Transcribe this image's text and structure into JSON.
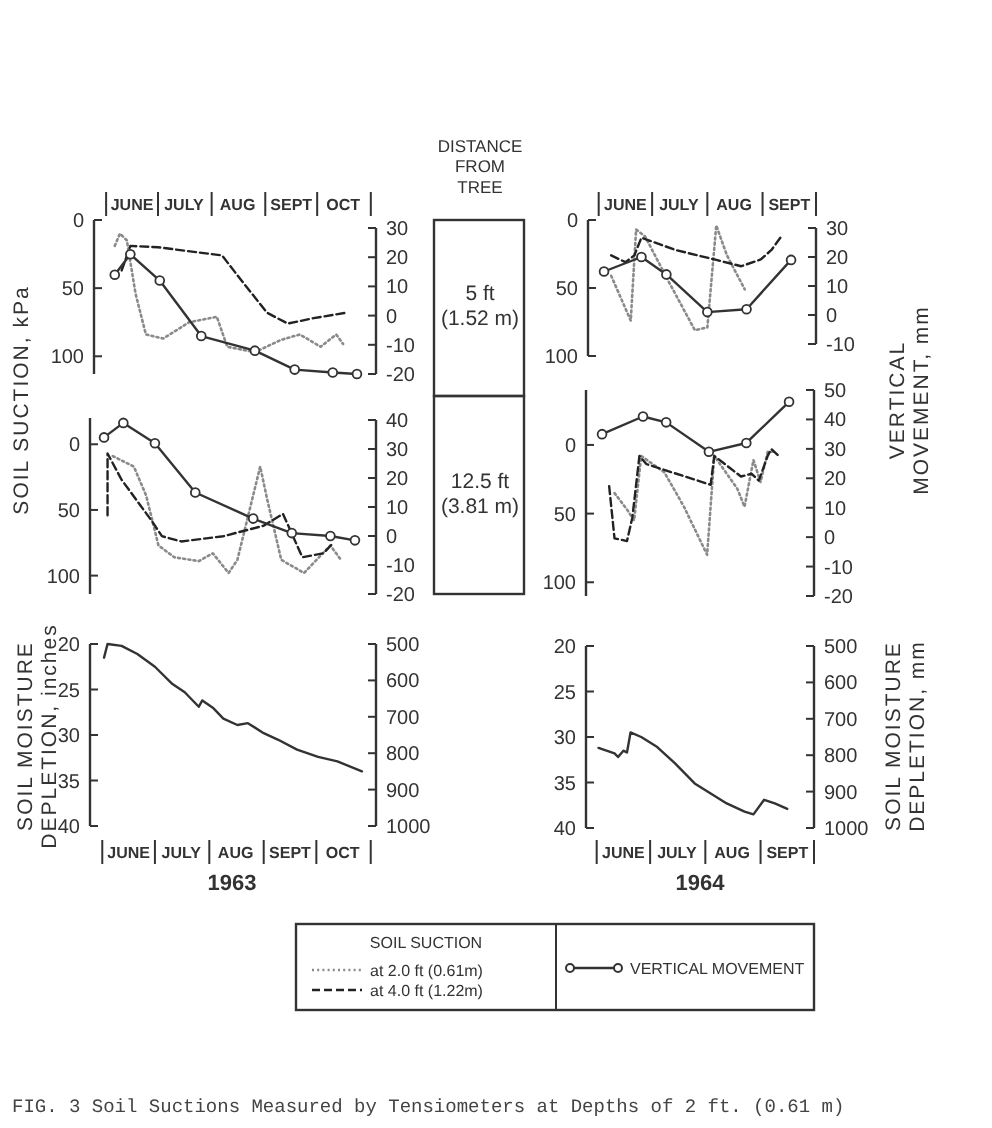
{
  "chart_data": [
    {
      "type": "line",
      "ylabel": "SOIL SUCTION, kPa",
      "legend": "bottom",
      "legend_title": "SOIL SUCTION",
      "annotations": [
        "DISTANCE FROM TREE",
        "5 ft (1.52 m)"
      ],
      "xlim": [
        "1963-05-25",
        "1963-11-04"
      ],
      "x2lim": [
        "1963-05-25",
        "1963-11-04"
      ],
      "x2ticks": [
        {
          "value": "1963-06-01",
          "label": null
        },
        {
          "value": "1963-06-16",
          "label": "JUNE"
        },
        {
          "value": "1963-07-01",
          "label": null
        },
        {
          "value": "1963-07-16",
          "label": "JULY"
        },
        {
          "value": "1963-08-01",
          "label": null
        },
        {
          "value": "1963-08-16",
          "label": "AUG"
        },
        {
          "value": "1963-09-01",
          "label": null
        },
        {
          "value": "1963-09-16",
          "label": "SEPT"
        },
        {
          "value": "1963-10-01",
          "label": null
        },
        {
          "value": "1963-10-16",
          "label": "OCT"
        },
        {
          "value": "1963-11-01",
          "label": null
        }
      ],
      "ylim": [
        113,
        0
      ],
      "yticks": [
        0,
        50,
        100
      ],
      "y2lim": [
        -20,
        30
      ],
      "y2ticks": [
        30,
        20,
        10,
        0,
        -10,
        -20
      ],
      "series": [
        {
          "name": "at 2.0 ft (0.61m)",
          "color": "#8a8a8a",
          "line_style": "dotted",
          "x": [
            "1963-06-06",
            "1963-06-09",
            "1963-06-13",
            "1963-06-18",
            "1963-06-24",
            "1963-07-04",
            "1963-07-19",
            "1963-08-04",
            "1963-08-10",
            "1963-08-26",
            "1963-09-10",
            "1963-09-21",
            "1963-10-03",
            "1963-10-12",
            "1963-10-16"
          ],
          "values": [
            19,
            10,
            15,
            54,
            84,
            87,
            75,
            71,
            93,
            97,
            88,
            84,
            93,
            84,
            91
          ]
        },
        {
          "name": "at 4.0 ft (1.22m)",
          "color": "#222222",
          "line_style": "dashed",
          "x": [
            "1963-06-10",
            "1963-06-15",
            "1963-07-01",
            "1963-08-07",
            "1963-08-18",
            "1963-09-02",
            "1963-09-14",
            "1963-09-29",
            "1963-10-18"
          ],
          "values": [
            37,
            19,
            20,
            26,
            44,
            68,
            76,
            72,
            68
          ]
        },
        {
          "name": "VERTICAL MOVEMENT",
          "color": "#333333",
          "axis": "y2",
          "marker": "circle",
          "x": [
            "1963-06-06",
            "1963-06-15",
            "1963-07-02",
            "1963-07-26",
            "1963-08-26",
            "1963-09-18",
            "1963-10-10",
            "1963-10-24"
          ],
          "values": [
            14,
            21,
            12,
            -7,
            -12,
            -18.5,
            -19.5,
            -20
          ]
        }
      ]
    },
    {
      "type": "line",
      "y2label": "VERTICAL MOVEMENT, mm",
      "xlim": [
        "1964-05-26",
        "1964-10-01"
      ],
      "x2lim": [
        "1964-05-26",
        "1964-10-01"
      ],
      "x2ticks": [
        {
          "value": "1964-06-01",
          "label": null
        },
        {
          "value": "1964-06-16",
          "label": "JUNE"
        },
        {
          "value": "1964-07-01",
          "label": null
        },
        {
          "value": "1964-07-16",
          "label": "JULY"
        },
        {
          "value": "1964-08-01",
          "label": null
        },
        {
          "value": "1964-08-16",
          "label": "AUG"
        },
        {
          "value": "1964-09-01",
          "label": null
        },
        {
          "value": "1964-09-16",
          "label": "SEPT"
        },
        {
          "value": "1964-10-01",
          "label": null
        }
      ],
      "ylim": [
        100,
        0
      ],
      "yticks": [
        0,
        50,
        100
      ],
      "y2lim": [
        -10,
        30
      ],
      "y2ticks": [
        30,
        20,
        10,
        0,
        -10
      ],
      "series": [
        {
          "color": "#8a8a8a",
          "line_style": "dotted",
          "x": [
            "1964-06-08",
            "1964-06-19",
            "1964-06-22",
            "1964-06-27",
            "1964-07-11",
            "1964-07-25",
            "1964-08-01",
            "1964-08-06",
            "1964-08-12",
            "1964-08-22"
          ],
          "values": [
            41,
            74,
            7,
            12,
            47,
            81,
            79,
            4,
            26,
            51
          ]
        },
        {
          "color": "#222222",
          "line_style": "dashed",
          "x": [
            "1964-06-08",
            "1964-06-16",
            "1964-06-21",
            "1964-06-25",
            "1964-07-14",
            "1964-08-05",
            "1964-08-20",
            "1964-08-31",
            "1964-09-06",
            "1964-09-11"
          ],
          "values": [
            26,
            31,
            26,
            13,
            22,
            29,
            34,
            29,
            22,
            13
          ]
        },
        {
          "color": "#333333",
          "axis": "y2",
          "marker": "circle",
          "x": [
            "1964-06-04",
            "1964-06-25",
            "1964-07-09",
            "1964-08-01",
            "1964-08-23",
            "1964-09-17"
          ],
          "values": [
            15,
            20,
            14,
            1,
            2,
            19
          ]
        }
      ]
    },
    {
      "type": "line",
      "annotations": [
        "12.5 ft (3.81 m)"
      ],
      "xlim": [
        "1963-05-25",
        "1963-11-04"
      ],
      "ylim": [
        114,
        -20
      ],
      "yticks": [
        0,
        50,
        100
      ],
      "y2lim": [
        -20,
        40
      ],
      "y2ticks": [
        40,
        30,
        20,
        10,
        0,
        -10,
        -20
      ],
      "series": [
        {
          "color": "#8a8a8a",
          "line_style": "dotted",
          "x": [
            "1963-06-07",
            "1963-06-19",
            "1963-06-26",
            "1963-07-03",
            "1963-07-12",
            "1963-07-26",
            "1963-08-03",
            "1963-08-12",
            "1963-08-17",
            "1963-08-30",
            "1963-09-03",
            "1963-09-11",
            "1963-09-24",
            "1963-10-09",
            "1963-10-15"
          ],
          "values": [
            9,
            17,
            39,
            77,
            86,
            89,
            83,
            98,
            88,
            17,
            42,
            88,
            98,
            77,
            88
          ]
        },
        {
          "color": "#222222",
          "line_style": "dashed",
          "x": [
            "1963-06-04",
            "1963-06-04",
            "1963-06-12",
            "1963-06-29",
            "1963-07-05",
            "1963-07-16",
            "1963-08-09",
            "1963-09-01",
            "1963-09-12",
            "1963-09-17",
            "1963-09-23",
            "1963-10-05",
            "1963-10-10"
          ],
          "values": [
            54,
            7,
            27,
            58,
            70,
            74,
            70,
            62,
            53,
            68,
            86,
            83,
            76
          ]
        },
        {
          "color": "#333333",
          "axis": "y2",
          "marker": "circle",
          "x": [
            "1963-06-02",
            "1963-06-13",
            "1963-07-01",
            "1963-07-24",
            "1963-08-26",
            "1963-09-17",
            "1963-10-09",
            "1963-10-23"
          ],
          "values": [
            34,
            39,
            32,
            15,
            6,
            1,
            0,
            -1.5
          ]
        }
      ]
    },
    {
      "type": "line",
      "xlim": [
        "1964-05-26",
        "1964-10-01"
      ],
      "ylim": [
        110,
        -40
      ],
      "yticks": [
        0,
        50,
        100
      ],
      "y2lim": [
        -20,
        50
      ],
      "y2ticks": [
        50,
        40,
        30,
        20,
        10,
        0,
        -10,
        -20
      ],
      "series": [
        {
          "color": "#8a8a8a",
          "line_style": "dotted",
          "x": [
            "1964-06-11",
            "1964-06-18",
            "1964-06-22",
            "1964-06-26",
            "1964-07-09",
            "1964-07-20",
            "1964-08-02",
            "1964-08-06",
            "1964-08-19",
            "1964-08-23",
            "1964-08-28",
            "1964-09-01",
            "1964-09-05",
            "1964-09-09"
          ],
          "values": [
            35,
            47,
            55,
            8,
            20,
            45,
            80,
            8,
            32,
            45,
            11,
            27,
            5,
            5
          ]
        },
        {
          "color": "#222222",
          "line_style": "dashed",
          "x": [
            "1964-06-08",
            "1964-06-11",
            "1964-06-18",
            "1964-06-21",
            "1964-06-25",
            "1964-06-29",
            "1964-08-04",
            "1964-08-06",
            "1964-08-15",
            "1964-08-21",
            "1964-08-27",
            "1964-08-31",
            "1964-09-05",
            "1964-09-07",
            "1964-09-12"
          ],
          "values": [
            30,
            68,
            70,
            53,
            8,
            14,
            29,
            8,
            17,
            23,
            21,
            26,
            8,
            3,
            9
          ]
        },
        {
          "color": "#333333",
          "axis": "y2",
          "marker": "circle",
          "x": [
            "1964-06-04",
            "1964-06-27",
            "1964-07-10",
            "1964-08-03",
            "1964-08-24",
            "1964-09-17"
          ],
          "values": [
            35,
            41,
            39,
            29,
            32,
            46
          ]
        }
      ]
    },
    {
      "type": "line",
      "ylabel": "SOIL MOISTURE DEPLETION, inches",
      "xlabel": "1963",
      "xlim": [
        "1963-05-25",
        "1963-11-04"
      ],
      "xticks": [
        {
          "value": "1963-06-01",
          "label": null
        },
        {
          "value": "1963-06-16",
          "label": "JUNE"
        },
        {
          "value": "1963-07-01",
          "label": null
        },
        {
          "value": "1963-07-16",
          "label": "JULY"
        },
        {
          "value": "1963-08-01",
          "label": null
        },
        {
          "value": "1963-08-16",
          "label": "AUG"
        },
        {
          "value": "1963-09-01",
          "label": null
        },
        {
          "value": "1963-09-16",
          "label": "SEPT"
        },
        {
          "value": "1963-10-01",
          "label": null
        },
        {
          "value": "1963-10-16",
          "label": "OCT"
        },
        {
          "value": "1963-11-01",
          "label": null
        }
      ],
      "ylim": [
        40,
        20
      ],
      "yticks": [
        20,
        25,
        30,
        35,
        40
      ],
      "y2lim": [
        1000,
        500
      ],
      "y2ticks": [
        500,
        600,
        700,
        800,
        900,
        1000
      ],
      "series": [
        {
          "color": "#333333",
          "x": [
            "1963-06-02",
            "1963-06-04",
            "1963-06-12",
            "1963-06-21",
            "1963-07-01",
            "1963-07-11",
            "1963-07-18",
            "1963-07-26",
            "1963-07-28",
            "1963-08-03",
            "1963-08-09",
            "1963-08-17",
            "1963-08-23",
            "1963-09-01",
            "1963-09-09",
            "1963-09-20",
            "1963-10-02",
            "1963-10-13",
            "1963-10-27"
          ],
          "values": [
            21.5,
            20,
            20.2,
            21.1,
            22.5,
            24.4,
            25.3,
            26.9,
            26.2,
            27,
            28.2,
            28.9,
            28.7,
            29.8,
            30.5,
            31.6,
            32.4,
            32.9,
            34
          ]
        }
      ]
    },
    {
      "type": "line",
      "y2label": "SOIL MOISTURE DEPLETION, mm",
      "xlabel": "1964",
      "annotations": [
        "FIG. 3 Soil Suctions Measured by Tensiometers at Depths of 2 ft. (0.61 m)"
      ],
      "xlim": [
        "1964-05-26",
        "1964-10-01"
      ],
      "xticks": [
        {
          "value": "1964-06-01",
          "label": null
        },
        {
          "value": "1964-06-16",
          "label": "JUNE"
        },
        {
          "value": "1964-07-01",
          "label": null
        },
        {
          "value": "1964-07-16",
          "label": "JULY"
        },
        {
          "value": "1964-08-01",
          "label": null
        },
        {
          "value": "1964-08-16",
          "label": "AUG"
        },
        {
          "value": "1964-09-01",
          "label": null
        },
        {
          "value": "1964-09-16",
          "label": "SEPT"
        },
        {
          "value": "1964-10-01",
          "label": null
        }
      ],
      "ylim": [
        40,
        20
      ],
      "yticks": [
        20,
        25,
        30,
        35,
        40
      ],
      "y2lim": [
        1000,
        500
      ],
      "y2ticks": [
        500,
        600,
        700,
        800,
        900,
        1000
      ],
      "series": [
        {
          "color": "#333333",
          "x": [
            "1964-06-02",
            "1964-06-11",
            "1964-06-13",
            "1964-06-16",
            "1964-06-18",
            "1964-06-20",
            "1964-06-26",
            "1964-07-05",
            "1964-07-15",
            "1964-07-26",
            "1964-08-04",
            "1964-08-13",
            "1964-08-23",
            "1964-08-28",
            "1964-09-03",
            "1964-09-09",
            "1964-09-16"
          ],
          "values": [
            31.2,
            31.8,
            32.2,
            31.5,
            31.7,
            29.5,
            30,
            31.1,
            32.9,
            35.1,
            36.2,
            37.3,
            38.2,
            38.5,
            36.9,
            37.3,
            37.9
          ]
        }
      ]
    }
  ]
}
